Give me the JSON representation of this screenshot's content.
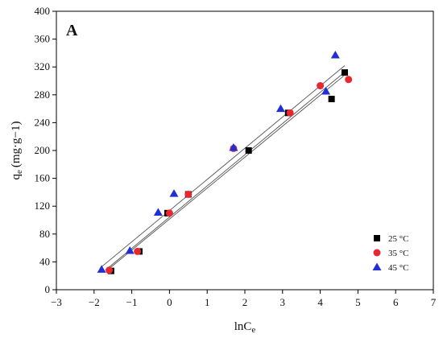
{
  "chart_data": {
    "type": "scatter",
    "panel_label": "A",
    "xlabel_main": "lnC",
    "xlabel_sub": "e",
    "ylabel_main": "q",
    "ylabel_sub": "e",
    "ylabel_unit": "(mg·g−1)",
    "xlim": [
      -3,
      7
    ],
    "ylim": [
      0,
      400
    ],
    "xticks": [
      -3,
      -2,
      -1,
      0,
      1,
      2,
      3,
      4,
      5,
      6,
      7
    ],
    "yticks": [
      0,
      40,
      80,
      120,
      160,
      200,
      240,
      280,
      320,
      360,
      400
    ],
    "grid": false,
    "legend_position": "bottom-right",
    "series": [
      {
        "name": "25 °C",
        "marker": "square",
        "color": "#000000",
        "points": [
          [
            -1.55,
            27
          ],
          [
            -0.8,
            55
          ],
          [
            -0.05,
            110
          ],
          [
            0.5,
            137
          ],
          [
            2.1,
            200
          ],
          [
            3.15,
            254
          ],
          [
            4.3,
            274
          ],
          [
            4.65,
            312
          ]
        ],
        "fit": [
          [
            -1.65,
            28
          ],
          [
            4.62,
            307
          ]
        ]
      },
      {
        "name": "35 °C",
        "marker": "circle",
        "color": "#e8282e",
        "points": [
          [
            -1.6,
            28
          ],
          [
            -0.85,
            55
          ],
          [
            0.0,
            110
          ],
          [
            0.5,
            137
          ],
          [
            1.7,
            203
          ],
          [
            3.2,
            254
          ],
          [
            4.0,
            293
          ],
          [
            4.75,
            302
          ]
        ],
        "fit": [
          [
            -1.7,
            28
          ],
          [
            4.7,
            315
          ]
        ]
      },
      {
        "name": "45 °C",
        "marker": "triangle",
        "color": "#1f2ed6",
        "points": [
          [
            -1.8,
            29
          ],
          [
            -1.05,
            56
          ],
          [
            -0.3,
            111
          ],
          [
            0.12,
            138
          ],
          [
            1.7,
            204
          ],
          [
            2.95,
            260
          ],
          [
            4.15,
            285
          ],
          [
            4.4,
            337
          ]
        ],
        "fit": [
          [
            -1.82,
            32
          ],
          [
            4.65,
            322
          ]
        ]
      }
    ]
  }
}
